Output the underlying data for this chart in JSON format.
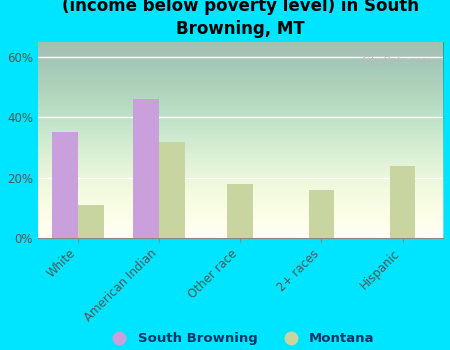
{
  "title": "Breakdown of poor residents within races\n(income below poverty level) in South\nBrowning, MT",
  "categories": [
    "White",
    "American Indian",
    "Other race",
    "2+ races",
    "Hispanic"
  ],
  "south_browning": [
    35,
    46,
    0,
    0,
    0
  ],
  "montana": [
    11,
    32,
    18,
    16,
    24
  ],
  "sb_color": "#c9a0dc",
  "mt_color": "#c8d5a0",
  "background_color": "#00e5ff",
  "ylim": [
    0,
    65
  ],
  "yticks": [
    0,
    20,
    40,
    60
  ],
  "ytick_labels": [
    "0%",
    "20%",
    "40%",
    "60%"
  ],
  "watermark": "City-Data.com",
  "legend_labels": [
    "South Browning",
    "Montana"
  ],
  "bar_width": 0.32,
  "title_fontsize": 12,
  "tick_fontsize": 8.5
}
